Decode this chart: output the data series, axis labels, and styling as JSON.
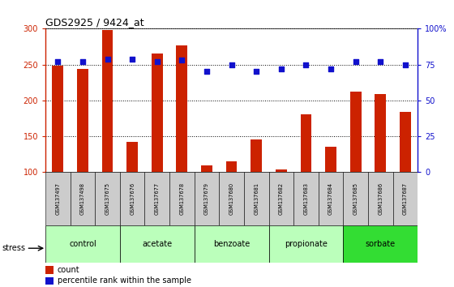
{
  "title": "GDS2925 / 9424_at",
  "samples": [
    "GSM137497",
    "GSM137498",
    "GSM137675",
    "GSM137676",
    "GSM137677",
    "GSM137678",
    "GSM137679",
    "GSM137680",
    "GSM137681",
    "GSM137682",
    "GSM137683",
    "GSM137684",
    "GSM137685",
    "GSM137686",
    "GSM137687"
  ],
  "counts": [
    248,
    244,
    298,
    142,
    265,
    277,
    109,
    115,
    146,
    104,
    181,
    136,
    212,
    209,
    184
  ],
  "percentiles": [
    77,
    77,
    79,
    79,
    77,
    78,
    70,
    75,
    70,
    72,
    75,
    72,
    77,
    77,
    75
  ],
  "group_spans": [
    {
      "label": "control",
      "start": 0,
      "end": 2,
      "color": "#bbffbb"
    },
    {
      "label": "acetate",
      "start": 3,
      "end": 5,
      "color": "#bbffbb"
    },
    {
      "label": "benzoate",
      "start": 6,
      "end": 8,
      "color": "#bbffbb"
    },
    {
      "label": "propionate",
      "start": 9,
      "end": 11,
      "color": "#bbffbb"
    },
    {
      "label": "sorbate",
      "start": 12,
      "end": 14,
      "color": "#33dd33"
    }
  ],
  "ylim_left": [
    100,
    300
  ],
  "ylim_right": [
    0,
    100
  ],
  "yticks_left": [
    100,
    150,
    200,
    250,
    300
  ],
  "yticks_right": [
    0,
    25,
    50,
    75,
    100
  ],
  "ytick_right_labels": [
    "0",
    "25",
    "50",
    "75",
    "100%"
  ],
  "bar_color": "#cc2200",
  "dot_color": "#1111cc",
  "sample_box_color": "#cccccc",
  "stress_label": "stress",
  "legend_count_label": "count",
  "legend_pct_label": "percentile rank within the sample"
}
